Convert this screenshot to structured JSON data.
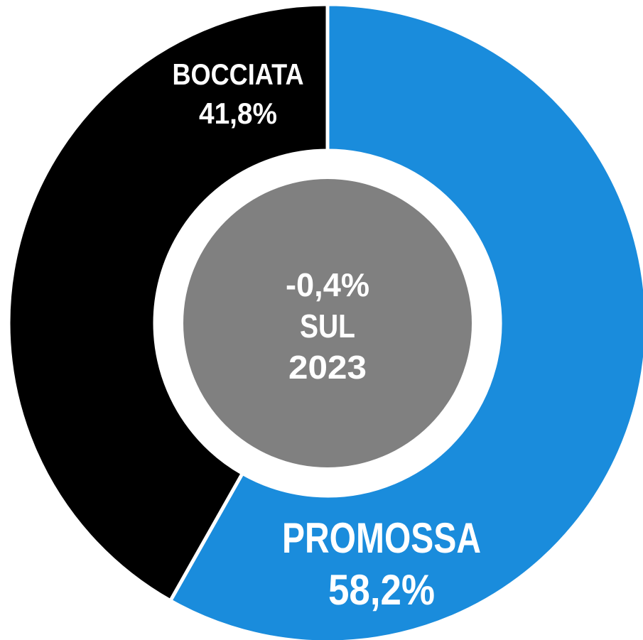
{
  "chart_data": {
    "type": "donut",
    "categories": [
      "PROMOSSA",
      "BOCCIATA"
    ],
    "values": [
      58.2,
      41.8
    ],
    "value_labels": [
      "58,2%",
      "41,8%"
    ],
    "colors": [
      "#1a8cdc",
      "#000000"
    ],
    "center_label": [
      "-0,4%",
      "SUL",
      "2023"
    ],
    "center_color": "#808080"
  }
}
